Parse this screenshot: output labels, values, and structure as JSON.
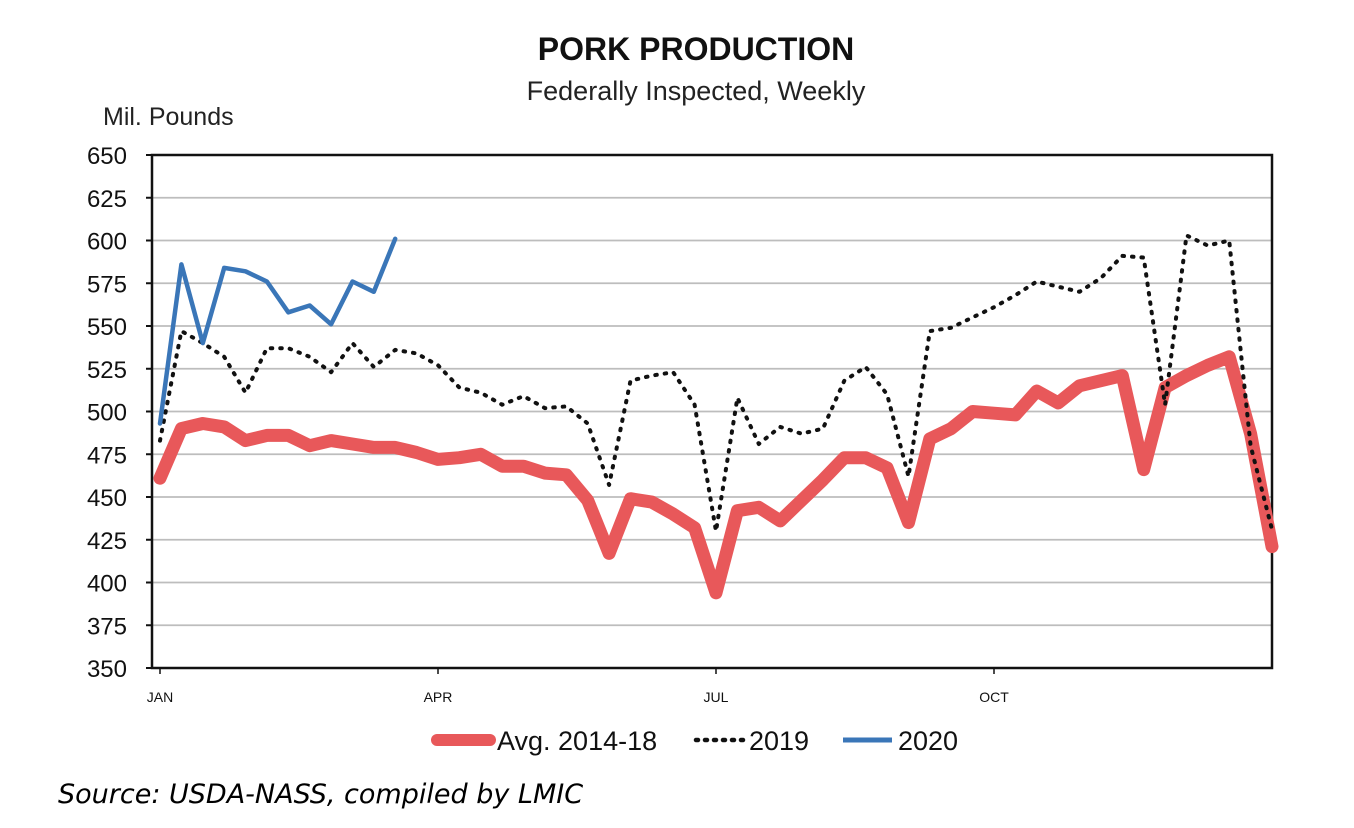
{
  "chart_data": {
    "type": "line",
    "title": "PORK PRODUCTION",
    "subtitle": "Federally Inspected, Weekly",
    "ylabel": "Mil. Pounds",
    "ylim": [
      350,
      650
    ],
    "yticks": [
      650,
      625,
      600,
      575,
      550,
      525,
      500,
      475,
      450,
      425,
      400,
      375,
      350
    ],
    "xlim": [
      1,
      53
    ],
    "xticks": [
      {
        "label": "JAN",
        "week": 1
      },
      {
        "label": "APR",
        "week": 14
      },
      {
        "label": "JUL",
        "week": 27
      },
      {
        "label": "OCT",
        "week": 40
      }
    ],
    "grid": true,
    "legend_position": "bottom",
    "series": [
      {
        "name": "Avg. 2014-18",
        "color": "#e8585a",
        "style": "solid-thick",
        "x": [
          1,
          2,
          3,
          4,
          5,
          6,
          7,
          8,
          9,
          10,
          11,
          12,
          13,
          14,
          15,
          16,
          17,
          18,
          19,
          20,
          21,
          22,
          23,
          24,
          25,
          26,
          27,
          28,
          29,
          30,
          31,
          32,
          33,
          34,
          35,
          36,
          37,
          38,
          39,
          40,
          41,
          42,
          43,
          44,
          45,
          46,
          47,
          48,
          49,
          50,
          51,
          52,
          53
        ],
        "values": [
          461,
          490,
          493,
          491,
          483,
          486,
          486,
          480,
          483,
          481,
          479,
          479,
          476,
          472,
          473,
          475,
          468,
          468,
          464,
          463,
          448,
          417,
          449,
          447,
          440,
          432,
          394,
          442,
          444,
          436,
          448,
          460,
          473,
          473,
          467,
          435,
          484,
          490,
          500,
          499,
          498,
          512,
          505,
          515,
          518,
          521,
          466,
          514,
          521,
          527,
          532,
          487,
          421
        ]
      },
      {
        "name": "2019",
        "color": "#111111",
        "style": "dotted",
        "x": [
          1,
          2,
          3,
          4,
          5,
          6,
          7,
          8,
          9,
          10,
          11,
          12,
          13,
          14,
          15,
          16,
          17,
          18,
          19,
          20,
          21,
          22,
          23,
          24,
          25,
          26,
          27,
          28,
          29,
          30,
          31,
          32,
          33,
          34,
          35,
          36,
          37,
          38,
          39,
          40,
          41,
          42,
          43,
          44,
          45,
          46,
          47,
          48,
          49,
          50,
          51,
          52,
          53
        ],
        "values": [
          483,
          547,
          540,
          532,
          511,
          537,
          537,
          532,
          523,
          540,
          526,
          536,
          534,
          527,
          514,
          511,
          504,
          509,
          502,
          503,
          493,
          457,
          518,
          521,
          523,
          504,
          430,
          508,
          481,
          491,
          487,
          490,
          518,
          526,
          510,
          462,
          547,
          549,
          555,
          561,
          568,
          576,
          573,
          570,
          578,
          591,
          590,
          504,
          603,
          597,
          600,
          480,
          431
        ]
      },
      {
        "name": "2020",
        "color": "#3a76b8",
        "style": "solid",
        "x": [
          1,
          2,
          3,
          4,
          5,
          6,
          7,
          8,
          9,
          10,
          11,
          12
        ],
        "values": [
          493,
          586,
          540,
          584,
          582,
          576,
          558,
          562,
          551,
          576,
          570,
          601
        ]
      }
    ],
    "source": "Source: USDA-NASS, compiled by LMIC"
  }
}
